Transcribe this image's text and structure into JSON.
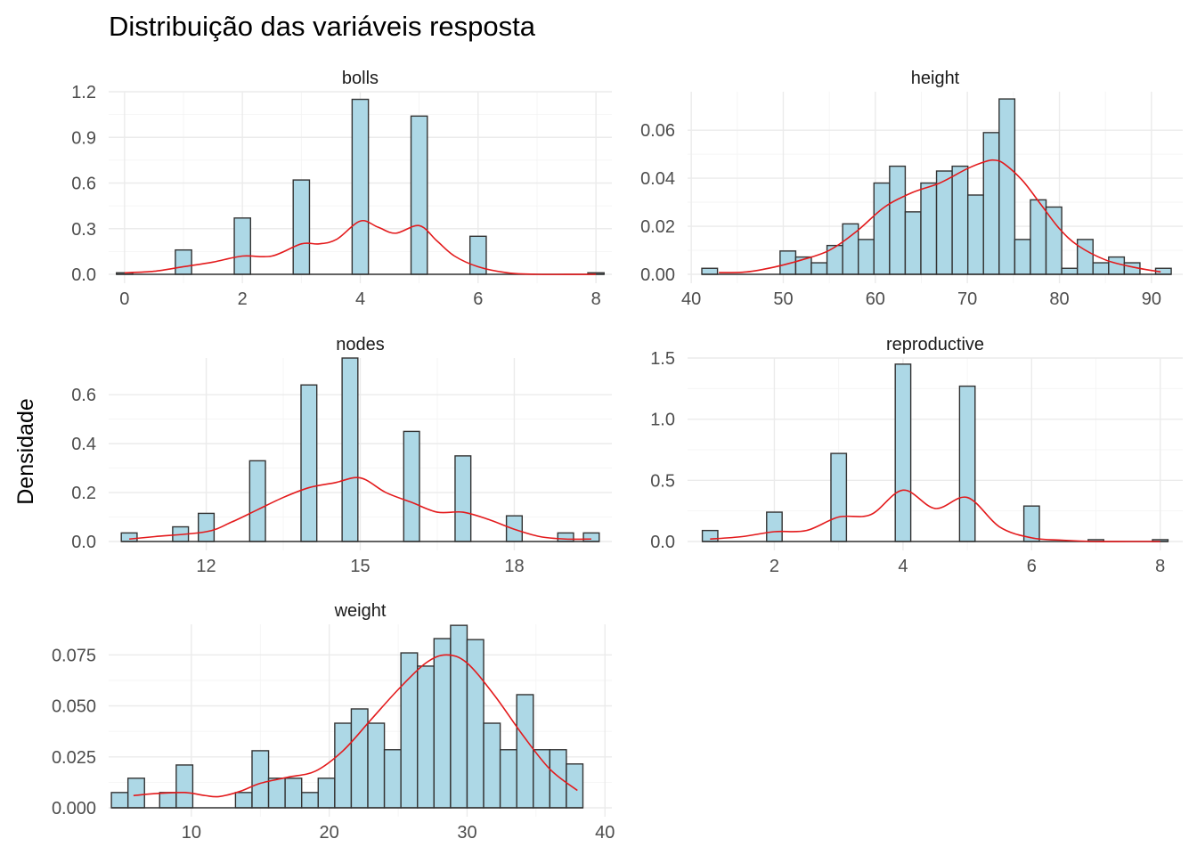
{
  "title": "Distribuição das variáveis resposta",
  "ylabel": "Densidade",
  "colors": {
    "bar_fill": "#add8e6",
    "bar_stroke": "#333333",
    "density": "#e31a1c",
    "grid": "#ebebeb"
  },
  "chart_data": [
    {
      "type": "bar",
      "name": "bolls",
      "strip": "bolls",
      "xlim": [
        -0.27,
        8.27
      ],
      "ylim": [
        0,
        1.2
      ],
      "x_ticks": [
        0,
        2,
        4,
        6,
        8
      ],
      "x_tick_labels": [
        "0",
        "2",
        "4",
        "6",
        "8"
      ],
      "y_ticks": [
        0,
        0.3,
        0.6,
        0.9,
        1.2
      ],
      "y_tick_labels": [
        "0.0",
        "0.3",
        "0.6",
        "0.9",
        "1.2"
      ],
      "binwidth": 0.276,
      "bins": [
        {
          "x": 0,
          "density": 0.01
        },
        {
          "x": 1,
          "density": 0.16
        },
        {
          "x": 2,
          "density": 0.37
        },
        {
          "x": 3,
          "density": 0.62
        },
        {
          "x": 4,
          "density": 1.15
        },
        {
          "x": 5,
          "density": 1.04
        },
        {
          "x": 6,
          "density": 0.25
        },
        {
          "x": 8,
          "density": 0.01
        }
      ],
      "density": {
        "x": [
          0,
          0.5,
          1,
          1.5,
          2,
          2.5,
          3,
          3.3,
          3.6,
          4,
          4.3,
          4.6,
          5,
          5.3,
          5.6,
          6,
          6.5,
          7,
          8
        ],
        "y": [
          0.01,
          0.02,
          0.05,
          0.08,
          0.12,
          0.12,
          0.2,
          0.2,
          0.23,
          0.35,
          0.31,
          0.27,
          0.32,
          0.22,
          0.12,
          0.05,
          0.01,
          0.0,
          0.0
        ]
      }
    },
    {
      "type": "bar",
      "name": "height",
      "strip": "height",
      "xlim": [
        39.6,
        93.4
      ],
      "ylim": [
        0,
        0.076
      ],
      "x_ticks": [
        40,
        50,
        60,
        70,
        80,
        90
      ],
      "x_tick_labels": [
        "40",
        "50",
        "60",
        "70",
        "80",
        "90"
      ],
      "y_ticks": [
        0,
        0.02,
        0.04,
        0.06
      ],
      "y_tick_labels": [
        "0.00",
        "0.02",
        "0.04",
        "0.06"
      ],
      "binwidth": 1.7,
      "bins": [
        {
          "x": 42.0,
          "density": 0.0025
        },
        {
          "x": 50.5,
          "density": 0.0097
        },
        {
          "x": 52.2,
          "density": 0.0072
        },
        {
          "x": 53.9,
          "density": 0.0048
        },
        {
          "x": 55.6,
          "density": 0.012
        },
        {
          "x": 57.3,
          "density": 0.021
        },
        {
          "x": 59.0,
          "density": 0.0145
        },
        {
          "x": 60.7,
          "density": 0.038
        },
        {
          "x": 62.4,
          "density": 0.045
        },
        {
          "x": 64.1,
          "density": 0.026
        },
        {
          "x": 65.8,
          "density": 0.038
        },
        {
          "x": 67.5,
          "density": 0.043
        },
        {
          "x": 69.2,
          "density": 0.045
        },
        {
          "x": 70.9,
          "density": 0.033
        },
        {
          "x": 72.6,
          "density": 0.059
        },
        {
          "x": 74.3,
          "density": 0.073
        },
        {
          "x": 76.0,
          "density": 0.0145
        },
        {
          "x": 77.7,
          "density": 0.031
        },
        {
          "x": 79.4,
          "density": 0.028
        },
        {
          "x": 81.1,
          "density": 0.0025
        },
        {
          "x": 82.8,
          "density": 0.0145
        },
        {
          "x": 84.5,
          "density": 0.0048
        },
        {
          "x": 86.2,
          "density": 0.0072
        },
        {
          "x": 87.9,
          "density": 0.0048
        },
        {
          "x": 91.3,
          "density": 0.0025
        }
      ],
      "density": {
        "x": [
          43,
          46,
          49,
          52,
          55,
          58,
          61,
          64,
          67,
          70,
          72,
          73,
          74,
          76,
          78,
          80,
          82,
          85,
          88,
          91
        ],
        "y": [
          0.0007,
          0.001,
          0.003,
          0.006,
          0.01,
          0.018,
          0.028,
          0.034,
          0.038,
          0.044,
          0.047,
          0.0475,
          0.046,
          0.039,
          0.029,
          0.019,
          0.012,
          0.006,
          0.003,
          0.001
        ]
      }
    },
    {
      "type": "bar",
      "name": "nodes",
      "strip": "nodes",
      "xlim": [
        10.1,
        19.9
      ],
      "ylim": [
        0,
        0.75
      ],
      "x_ticks": [
        12,
        15,
        18
      ],
      "x_tick_labels": [
        "12",
        "15",
        "18"
      ],
      "y_ticks": [
        0,
        0.2,
        0.4,
        0.6
      ],
      "y_tick_labels": [
        "0.0",
        "0.2",
        "0.4",
        "0.6"
      ],
      "binwidth": 0.307,
      "bins": [
        {
          "x": 10.5,
          "density": 0.035
        },
        {
          "x": 11.5,
          "density": 0.06
        },
        {
          "x": 12.0,
          "density": 0.115
        },
        {
          "x": 13.0,
          "density": 0.33
        },
        {
          "x": 14.0,
          "density": 0.64
        },
        {
          "x": 14.8,
          "density": 0.75
        },
        {
          "x": 16.0,
          "density": 0.45
        },
        {
          "x": 17.0,
          "density": 0.35
        },
        {
          "x": 18.0,
          "density": 0.105
        },
        {
          "x": 19.0,
          "density": 0.035
        },
        {
          "x": 19.5,
          "density": 0.035
        }
      ],
      "density": {
        "x": [
          10.5,
          11,
          12,
          12.5,
          13,
          13.5,
          14,
          14.5,
          15,
          15.5,
          16,
          16.5,
          17,
          17.5,
          18,
          18.5,
          19,
          19.5
        ],
        "y": [
          0.01,
          0.02,
          0.04,
          0.08,
          0.13,
          0.18,
          0.22,
          0.24,
          0.26,
          0.2,
          0.16,
          0.12,
          0.12,
          0.09,
          0.05,
          0.02,
          0.01,
          0.01
        ]
      }
    },
    {
      "type": "bar",
      "name": "reproductive",
      "strip": "reproductive",
      "xlim": [
        0.65,
        8.35
      ],
      "ylim": [
        0,
        1.5
      ],
      "x_ticks": [
        2,
        4,
        6,
        8
      ],
      "x_tick_labels": [
        "2",
        "4",
        "6",
        "8"
      ],
      "y_ticks": [
        0,
        0.5,
        1.0,
        1.5
      ],
      "y_tick_labels": [
        "0.0",
        "0.5",
        "1.0",
        "1.5"
      ],
      "binwidth": 0.241,
      "bins": [
        {
          "x": 1,
          "density": 0.09
        },
        {
          "x": 2,
          "density": 0.24
        },
        {
          "x": 3,
          "density": 0.72
        },
        {
          "x": 4,
          "density": 1.45
        },
        {
          "x": 5,
          "density": 1.27
        },
        {
          "x": 6,
          "density": 0.29
        },
        {
          "x": 7,
          "density": 0.015
        },
        {
          "x": 8,
          "density": 0.015
        }
      ],
      "density": {
        "x": [
          1,
          1.5,
          2,
          2.5,
          3,
          3.5,
          4,
          4.5,
          5,
          5.5,
          6,
          6.5,
          7,
          7.5,
          8
        ],
        "y": [
          0.02,
          0.04,
          0.08,
          0.09,
          0.2,
          0.22,
          0.42,
          0.27,
          0.36,
          0.12,
          0.03,
          0.01,
          0.0,
          0.0,
          0.0
        ]
      }
    },
    {
      "type": "bar",
      "name": "weight",
      "strip": "weight",
      "xlim": [
        4.0,
        40.5
      ],
      "ylim": [
        0,
        0.09
      ],
      "x_ticks": [
        10,
        20,
        30,
        40
      ],
      "x_tick_labels": [
        "10",
        "20",
        "30",
        "40"
      ],
      "y_ticks": [
        0,
        0.025,
        0.05,
        0.075
      ],
      "y_tick_labels": [
        "0.000",
        "0.025",
        "0.050",
        "0.075"
      ],
      "binwidth": 1.2,
      "bins": [
        {
          "x": 4.8,
          "density": 0.0075
        },
        {
          "x": 6.0,
          "density": 0.0145
        },
        {
          "x": 8.3,
          "density": 0.0075
        },
        {
          "x": 9.5,
          "density": 0.021
        },
        {
          "x": 13.8,
          "density": 0.0075
        },
        {
          "x": 15.0,
          "density": 0.028
        },
        {
          "x": 16.2,
          "density": 0.0145
        },
        {
          "x": 17.4,
          "density": 0.0145
        },
        {
          "x": 18.6,
          "density": 0.0075
        },
        {
          "x": 19.8,
          "density": 0.0145
        },
        {
          "x": 21.0,
          "density": 0.0415
        },
        {
          "x": 22.2,
          "density": 0.0485
        },
        {
          "x": 23.4,
          "density": 0.0415
        },
        {
          "x": 24.6,
          "density": 0.0285
        },
        {
          "x": 25.8,
          "density": 0.076
        },
        {
          "x": 27.0,
          "density": 0.0695
        },
        {
          "x": 28.2,
          "density": 0.083
        },
        {
          "x": 29.4,
          "density": 0.0895
        },
        {
          "x": 30.6,
          "density": 0.0825
        },
        {
          "x": 31.8,
          "density": 0.0415
        },
        {
          "x": 33.0,
          "density": 0.0285
        },
        {
          "x": 34.2,
          "density": 0.0555
        },
        {
          "x": 35.4,
          "density": 0.0285
        },
        {
          "x": 36.6,
          "density": 0.0285
        },
        {
          "x": 37.8,
          "density": 0.0215
        }
      ],
      "density": {
        "x": [
          5.8,
          7.5,
          9.5,
          11,
          12,
          13.5,
          15,
          17,
          19,
          21,
          23,
          25,
          27,
          28.5,
          30,
          32,
          34,
          36,
          38
        ],
        "y": [
          0.006,
          0.007,
          0.0075,
          0.006,
          0.0055,
          0.008,
          0.012,
          0.015,
          0.018,
          0.028,
          0.043,
          0.058,
          0.071,
          0.075,
          0.071,
          0.055,
          0.036,
          0.019,
          0.0085
        ]
      }
    }
  ]
}
